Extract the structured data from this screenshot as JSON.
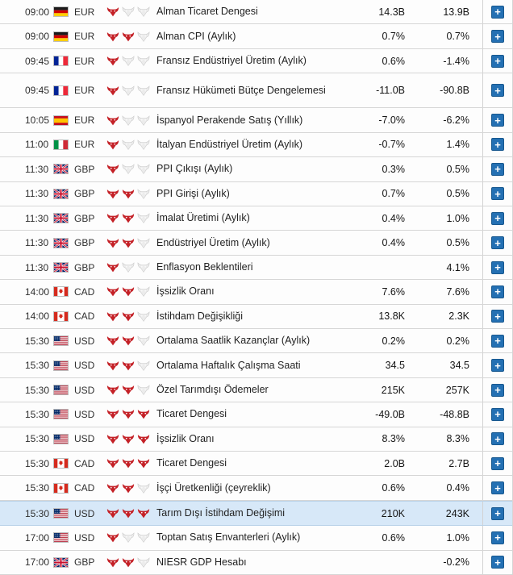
{
  "colors": {
    "row_border": "#d6d6d6",
    "highlight_bg": "#d7e8f8",
    "highlight_border": "#b9d2e8",
    "bull_active": "#c42127",
    "bull_inactive": "#ececec",
    "bull_inactive_stroke": "#c8c8c8",
    "plus_bg": "#2470b3",
    "plus_border": "#18588f"
  },
  "plus_label": "+",
  "rows": [
    {
      "time": "09:00",
      "country": "de",
      "currency": "EUR",
      "importance": 1,
      "event": "Alman Ticaret Dengesi",
      "value1": "14.3B",
      "value2": "13.9B",
      "highlighted": false,
      "tall": false
    },
    {
      "time": "09:00",
      "country": "de",
      "currency": "EUR",
      "importance": 2,
      "event": "Alman CPI (Aylık)",
      "value1": "0.7%",
      "value2": "0.7%",
      "highlighted": false,
      "tall": false
    },
    {
      "time": "09:45",
      "country": "fr",
      "currency": "EUR",
      "importance": 1,
      "event": "Fransız Endüstriyel Üretim (Aylık)",
      "value1": "0.6%",
      "value2": "-1.4%",
      "highlighted": false,
      "tall": false
    },
    {
      "time": "09:45",
      "country": "fr",
      "currency": "EUR",
      "importance": 1,
      "event": "Fransız Hükümeti Bütçe Dengelemesi",
      "value1": "-11.0B",
      "value2": "-90.8B",
      "highlighted": false,
      "tall": true
    },
    {
      "time": "10:05",
      "country": "es",
      "currency": "EUR",
      "importance": 1,
      "event": "İspanyol Perakende Satış (Yıllık)",
      "value1": "-7.0%",
      "value2": "-6.2%",
      "highlighted": false,
      "tall": false
    },
    {
      "time": "11:00",
      "country": "it",
      "currency": "EUR",
      "importance": 1,
      "event": "İtalyan Endüstriyel Üretim (Aylık)",
      "value1": "-0.7%",
      "value2": "1.4%",
      "highlighted": false,
      "tall": false
    },
    {
      "time": "11:30",
      "country": "gb",
      "currency": "GBP",
      "importance": 1,
      "event": "PPI Çıkışı (Aylık)",
      "value1": "0.3%",
      "value2": "0.5%",
      "highlighted": false,
      "tall": false
    },
    {
      "time": "11:30",
      "country": "gb",
      "currency": "GBP",
      "importance": 2,
      "event": "PPI Girişi (Aylık)",
      "value1": "0.7%",
      "value2": "0.5%",
      "highlighted": false,
      "tall": false
    },
    {
      "time": "11:30",
      "country": "gb",
      "currency": "GBP",
      "importance": 2,
      "event": "İmalat Üretimi (Aylık)",
      "value1": "0.4%",
      "value2": "1.0%",
      "highlighted": false,
      "tall": false
    },
    {
      "time": "11:30",
      "country": "gb",
      "currency": "GBP",
      "importance": 2,
      "event": "Endüstriyel Üretim (Aylık)",
      "value1": "0.4%",
      "value2": "0.5%",
      "highlighted": false,
      "tall": false
    },
    {
      "time": "11:30",
      "country": "gb",
      "currency": "GBP",
      "importance": 1,
      "event": "Enflasyon Beklentileri",
      "value1": "",
      "value2": "4.1%",
      "highlighted": false,
      "tall": false
    },
    {
      "time": "14:00",
      "country": "ca",
      "currency": "CAD",
      "importance": 2,
      "event": "İşsizlik Oranı",
      "value1": "7.6%",
      "value2": "7.6%",
      "highlighted": false,
      "tall": false
    },
    {
      "time": "14:00",
      "country": "ca",
      "currency": "CAD",
      "importance": 2,
      "event": "İstihdam Değişikliği",
      "value1": "13.8K",
      "value2": "2.3K",
      "highlighted": false,
      "tall": false
    },
    {
      "time": "15:30",
      "country": "us",
      "currency": "USD",
      "importance": 2,
      "event": "Ortalama Saatlik Kazançlar (Aylık)",
      "value1": "0.2%",
      "value2": "0.2%",
      "highlighted": false,
      "tall": false
    },
    {
      "time": "15:30",
      "country": "us",
      "currency": "USD",
      "importance": 2,
      "event": "Ortalama Haftalık Çalışma Saati",
      "value1": "34.5",
      "value2": "34.5",
      "highlighted": false,
      "tall": false
    },
    {
      "time": "15:30",
      "country": "us",
      "currency": "USD",
      "importance": 2,
      "event": "Özel Tarımdışı Ödemeler",
      "value1": "215K",
      "value2": "257K",
      "highlighted": false,
      "tall": false
    },
    {
      "time": "15:30",
      "country": "us",
      "currency": "USD",
      "importance": 3,
      "event": "Ticaret Dengesi",
      "value1": "-49.0B",
      "value2": "-48.8B",
      "highlighted": false,
      "tall": false
    },
    {
      "time": "15:30",
      "country": "us",
      "currency": "USD",
      "importance": 3,
      "event": "İşsizlik Oranı",
      "value1": "8.3%",
      "value2": "8.3%",
      "highlighted": false,
      "tall": false
    },
    {
      "time": "15:30",
      "country": "ca",
      "currency": "CAD",
      "importance": 3,
      "event": "Ticaret Dengesi",
      "value1": "2.0B",
      "value2": "2.7B",
      "highlighted": false,
      "tall": false
    },
    {
      "time": "15:30",
      "country": "ca",
      "currency": "CAD",
      "importance": 2,
      "event": "İşçi Üretkenliği (çeyreklik)",
      "value1": "0.6%",
      "value2": "0.4%",
      "highlighted": false,
      "tall": false
    },
    {
      "time": "15:30",
      "country": "us",
      "currency": "USD",
      "importance": 3,
      "event": "Tarım Dışı İstihdam Değişimi",
      "value1": "210K",
      "value2": "243K",
      "highlighted": true,
      "tall": false
    },
    {
      "time": "17:00",
      "country": "us",
      "currency": "USD",
      "importance": 1,
      "event": "Toptan Satış Envanterleri (Aylık)",
      "value1": "0.6%",
      "value2": "1.0%",
      "highlighted": false,
      "tall": false
    },
    {
      "time": "17:00",
      "country": "gb",
      "currency": "GBP",
      "importance": 2,
      "event": "NIESR GDP Hesabı",
      "value1": "",
      "value2": "-0.2%",
      "highlighted": false,
      "tall": false
    }
  ]
}
